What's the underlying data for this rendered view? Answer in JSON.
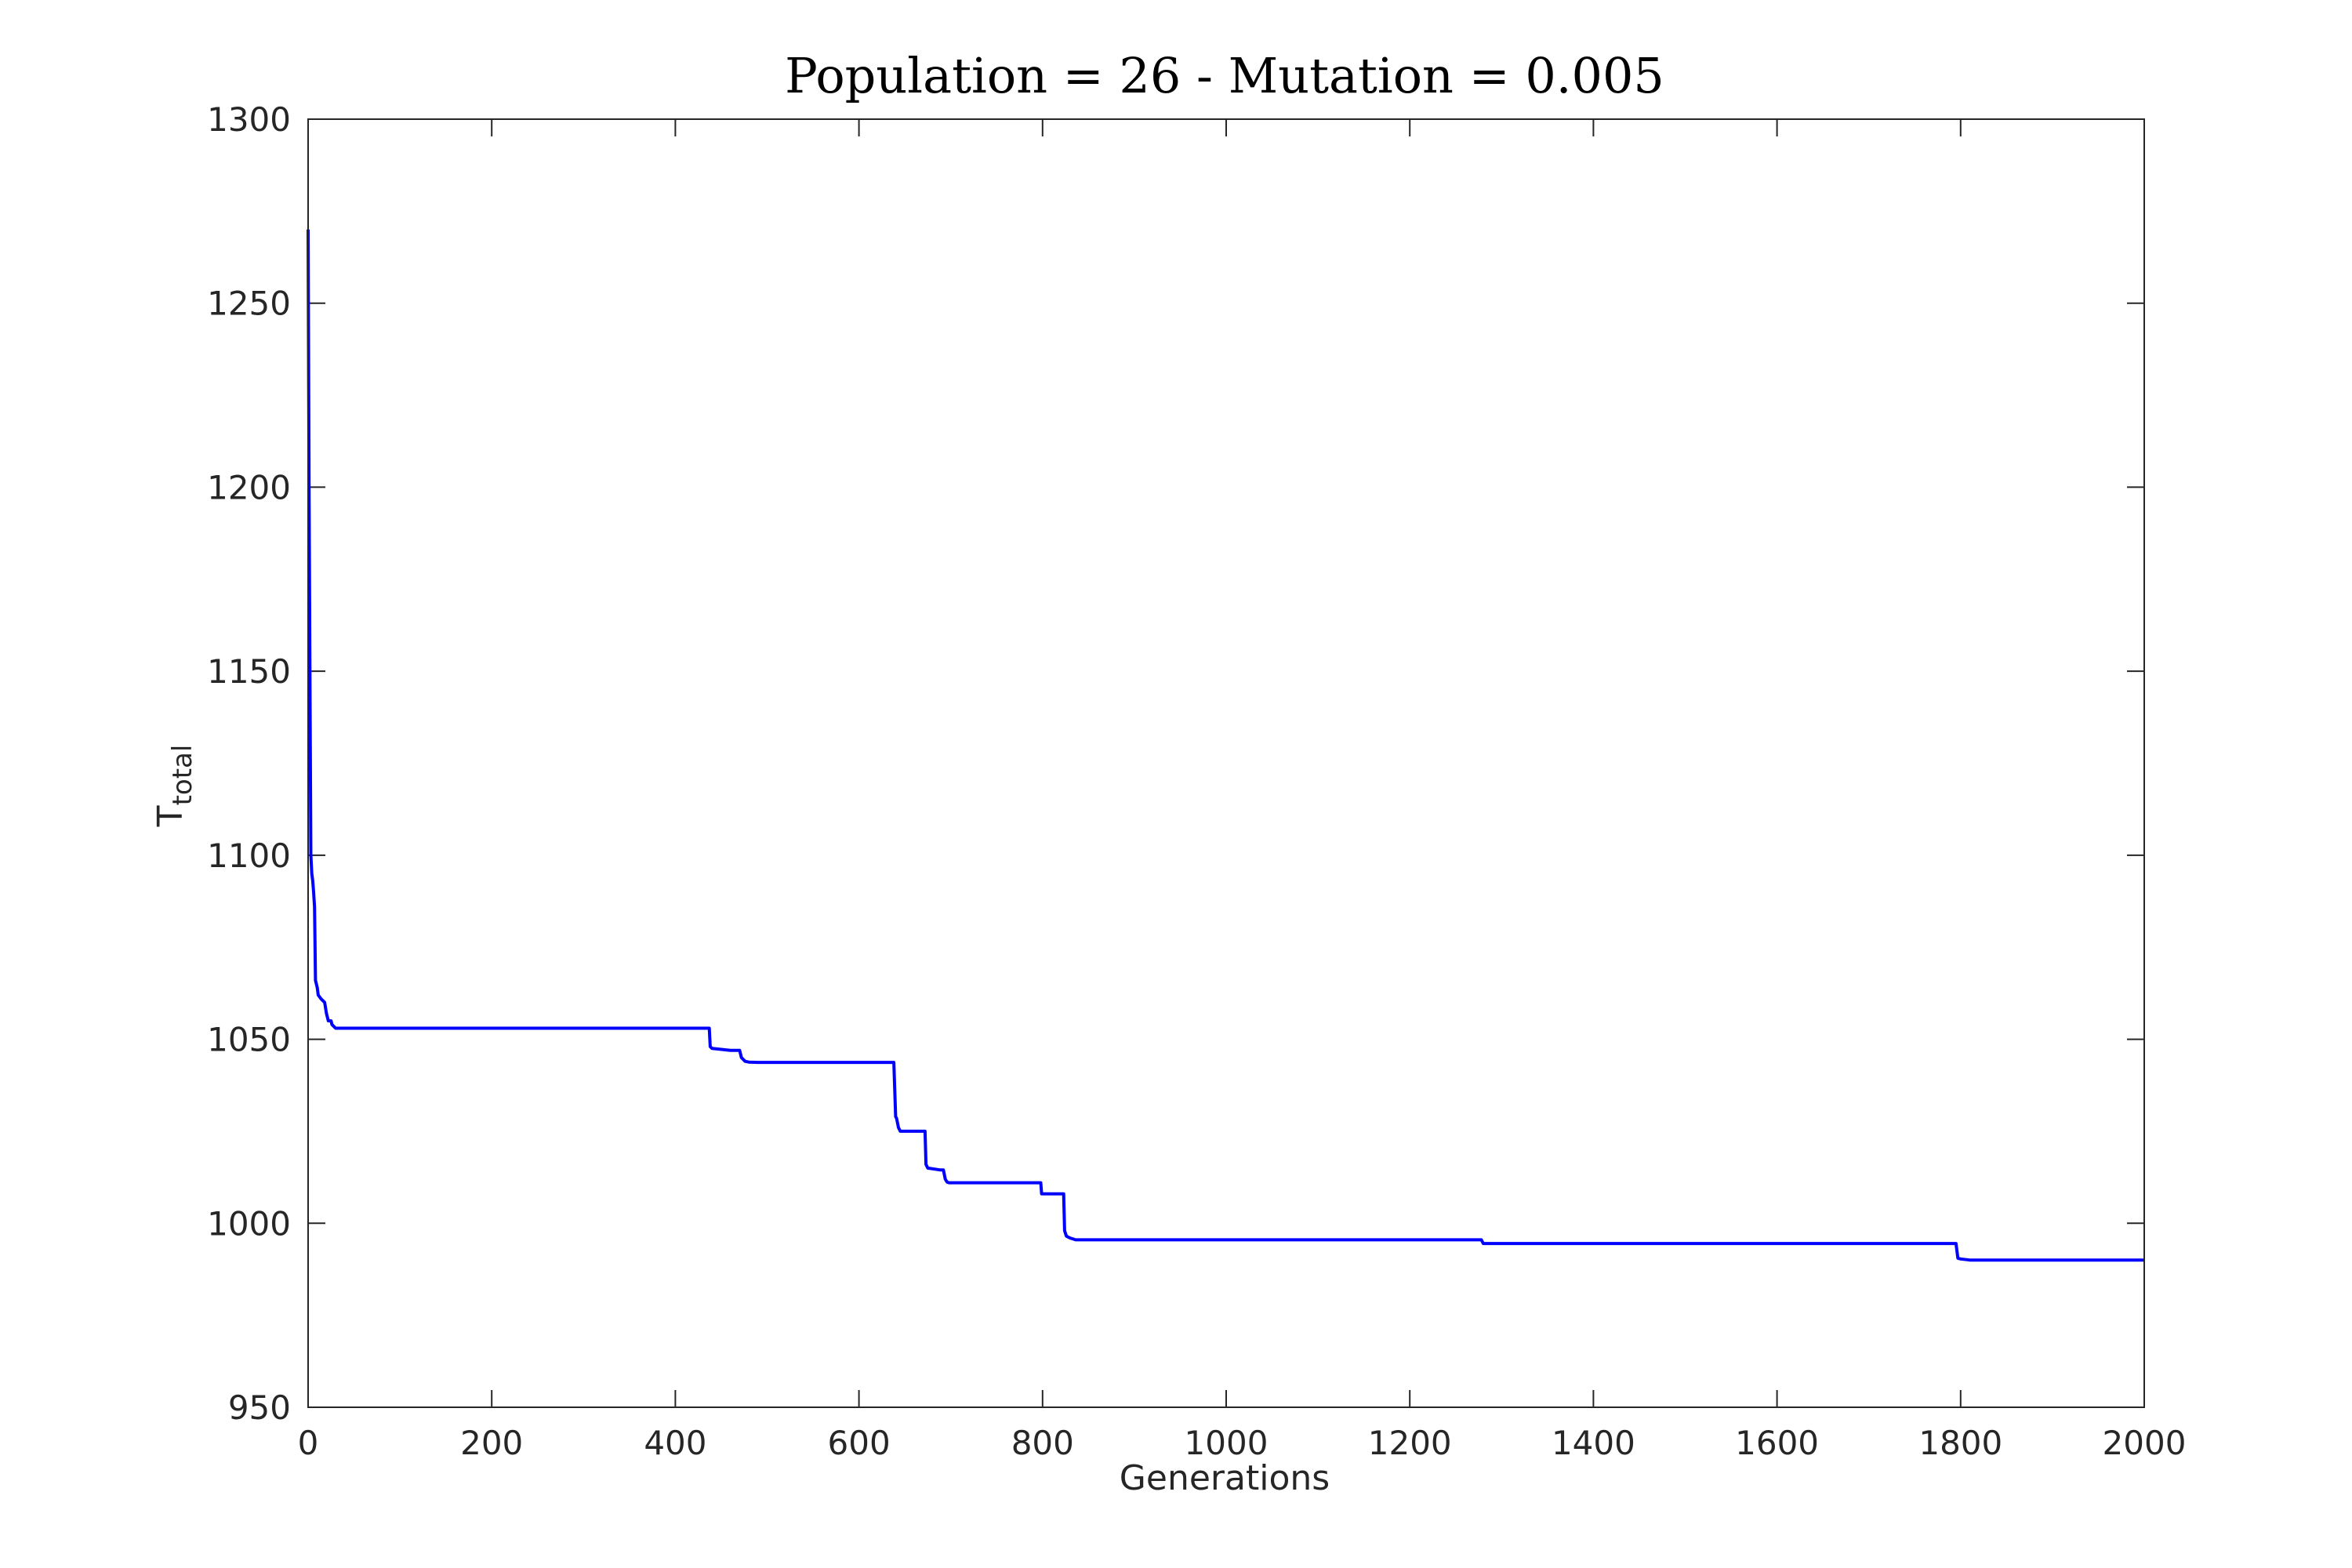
{
  "chart_data": {
    "type": "line",
    "title": "Population = 26 - Mutation = 0.005",
    "xlabel": "Generations",
    "ylabel": "T",
    "ylabel_subscript": "total",
    "xlim": [
      0,
      2000
    ],
    "ylim": [
      950,
      1300
    ],
    "xticks": [
      0,
      200,
      400,
      600,
      800,
      1000,
      1200,
      1400,
      1600,
      1800,
      2000
    ],
    "yticks": [
      950,
      1000,
      1050,
      1100,
      1150,
      1200,
      1250,
      1300
    ],
    "grid": false,
    "line_color": "#0000ff",
    "series": [
      {
        "x": [
          0,
          1,
          2,
          3,
          4,
          5,
          6,
          7,
          8,
          10,
          11,
          14,
          18,
          20,
          22,
          25,
          26,
          30,
          40,
          100,
          300,
          437,
          438,
          440,
          460,
          470,
          472,
          476,
          480,
          490,
          500,
          600,
          638,
          640,
          641,
          643,
          645,
          660,
          672,
          673,
          675,
          688,
          692,
          694,
          696,
          698,
          705,
          760,
          798,
          799,
          823,
          824,
          826,
          830,
          836,
          1000,
          1278,
          1280,
          1283,
          1700,
          1795,
          1797,
          1800,
          1810,
          2000
        ],
        "y": [
          1270,
          1200,
          1150,
          1100,
          1095,
          1093,
          1090,
          1086,
          1066,
          1064,
          1062,
          1061,
          1060,
          1057,
          1055,
          1055,
          1054,
          1053,
          1053,
          1053,
          1053,
          1053,
          1048,
          1047.5,
          1047,
          1047,
          1045,
          1044,
          1043.8,
          1043.7,
          1043.7,
          1043.7,
          1043.7,
          1029,
          1028.5,
          1026,
          1025,
          1025,
          1025,
          1016,
          1015,
          1014.5,
          1014.5,
          1012,
          1011.2,
          1011,
          1011,
          1011,
          1011,
          1008,
          1008,
          998,
          996.5,
          996,
          995.5,
          995.5,
          995.5,
          994.5,
          994.5,
          994.5,
          994.5,
          990.5,
          990.3,
          990,
          990
        ]
      }
    ]
  }
}
